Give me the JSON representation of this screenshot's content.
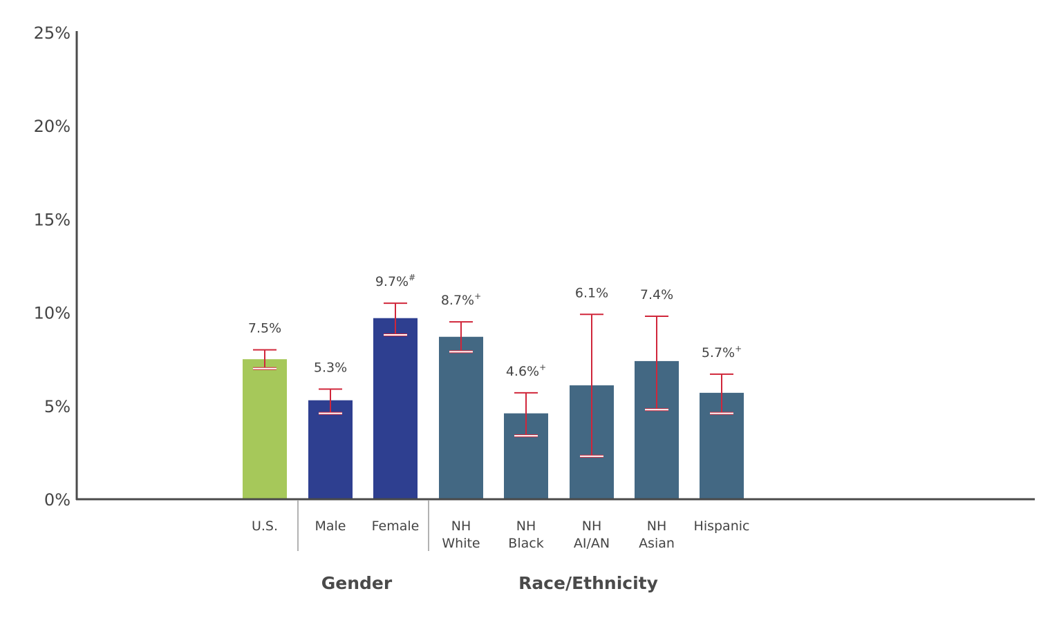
{
  "chart_data": {
    "type": "bar",
    "ylim": [
      0,
      25
    ],
    "yticks": [
      "0%",
      "5%",
      "10%",
      "15%",
      "20%",
      "25%"
    ],
    "ytick_values": [
      0,
      5,
      10,
      15,
      20,
      25
    ],
    "colors": {
      "overall": "#a6c85a",
      "gender": "#2e3f90",
      "race": "#436883",
      "error_bar": "#d0263a",
      "lower_cap": "#ffffff",
      "axis": "#4a4a4a"
    },
    "bars": [
      {
        "category": [
          "U.S."
        ],
        "value": 7.5,
        "label": "7.5%",
        "sup": "",
        "ci": [
          7.0,
          8.0
        ],
        "group": "overall"
      },
      {
        "category": [
          "Male"
        ],
        "value": 5.3,
        "label": "5.3%",
        "sup": "",
        "ci": [
          4.6,
          5.9
        ],
        "group": "gender"
      },
      {
        "category": [
          "Female"
        ],
        "value": 9.7,
        "label": "9.7%",
        "sup": "#",
        "ci": [
          8.8,
          10.5
        ],
        "group": "gender"
      },
      {
        "category": [
          "NH",
          "White"
        ],
        "value": 8.7,
        "label": "8.7%",
        "sup": "+",
        "ci": [
          7.9,
          9.5
        ],
        "group": "race"
      },
      {
        "category": [
          "NH",
          "Black"
        ],
        "value": 4.6,
        "label": "4.6%",
        "sup": "+",
        "ci": [
          3.4,
          5.7
        ],
        "group": "race"
      },
      {
        "category": [
          "NH",
          "AI/AN"
        ],
        "value": 6.1,
        "label": "6.1%",
        "sup": "",
        "ci": [
          2.3,
          9.9
        ],
        "group": "race"
      },
      {
        "category": [
          "NH",
          "Asian"
        ],
        "value": 7.4,
        "label": "7.4%",
        "sup": "",
        "ci": [
          4.8,
          9.8
        ],
        "group": "race"
      },
      {
        "category": [
          "Hispanic"
        ],
        "value": 5.7,
        "label": "5.7%",
        "sup": "+",
        "ci": [
          4.6,
          6.7
        ],
        "group": "race"
      }
    ],
    "groups": [
      {
        "name": "Gender"
      },
      {
        "name": "Race/Ethnicity"
      }
    ]
  }
}
